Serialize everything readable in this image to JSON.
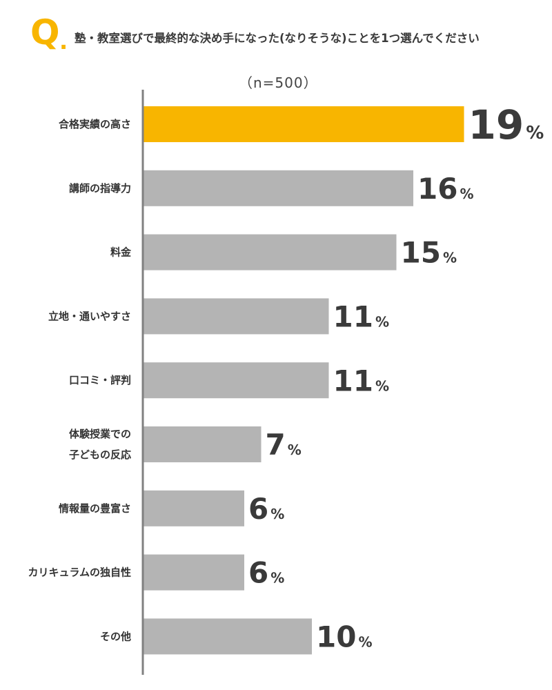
{
  "header": {
    "q_mark": "Q",
    "q_dot": ".",
    "question": "塾・教室選びで最終的な決め手になった(なりそうな)ことを1つ選んでください"
  },
  "sample_size": "（n=500）",
  "chart_data": {
    "type": "bar",
    "orientation": "horizontal",
    "categories": [
      [
        "合格実績の高さ"
      ],
      [
        "講師の指導力"
      ],
      [
        "料金"
      ],
      [
        "立地・通いやすさ"
      ],
      [
        "口コミ・評判"
      ],
      [
        "体験授業での",
        "子どもの反応"
      ],
      [
        "情報量の豊富さ"
      ],
      [
        "カリキュラムの独自性"
      ],
      [
        "その他"
      ]
    ],
    "values": [
      19,
      16,
      15,
      11,
      11,
      7,
      6,
      6,
      10
    ],
    "value_unit": "%",
    "highlight_index": 0,
    "colors": {
      "highlight": "#f8b500",
      "bar": "#b4b4b4",
      "axis": "#808080",
      "value_text": "#3a3a3a"
    },
    "grid": false,
    "legend": "none"
  }
}
